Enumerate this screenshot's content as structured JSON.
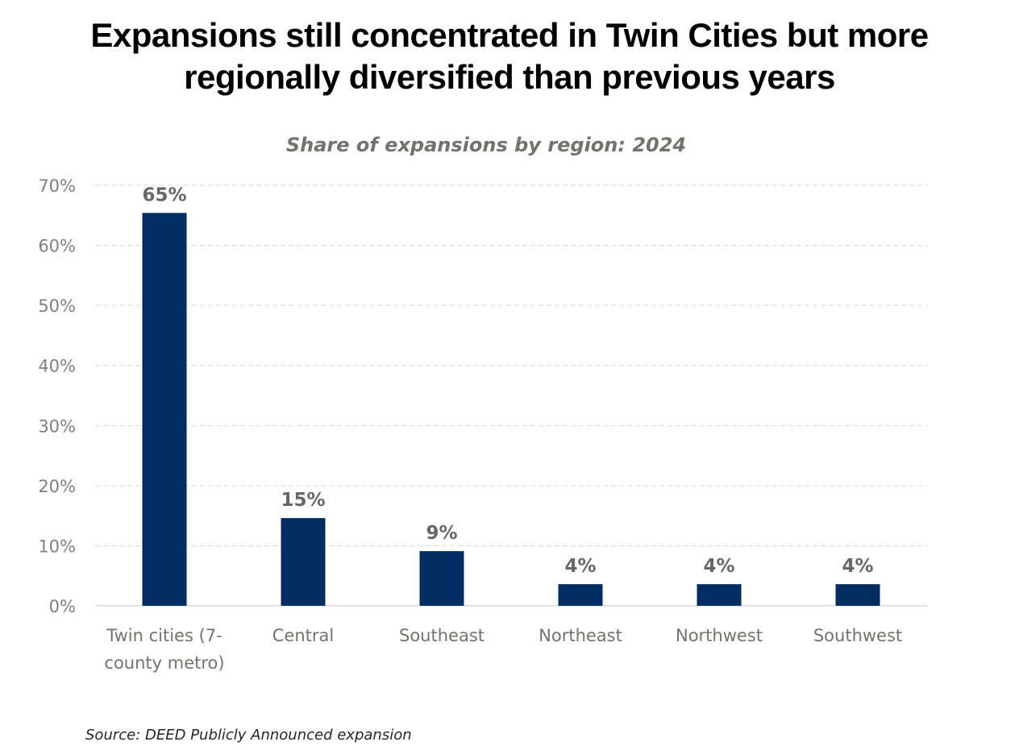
{
  "title_line1": "Expansions still concentrated in Twin Cities but more",
  "title_line2": "regionally diversified than previous years",
  "source": "Source: DEED Publicly Announced expansion",
  "colors": {
    "bar": "#002D62",
    "grid": "#D9D9D9",
    "axis": "#D9D9D9"
  },
  "chart_data": {
    "type": "bar",
    "title": "Share of expansions by region: 2024",
    "xlabel": "",
    "ylabel": "",
    "categories": [
      [
        "Twin cities (7-",
        "county metro)"
      ],
      [
        "Central"
      ],
      [
        "Southeast"
      ],
      [
        "Northeast"
      ],
      [
        "Northwest"
      ],
      [
        "Southwest"
      ]
    ],
    "values": [
      65.4,
      14.6,
      9.1,
      3.6,
      3.6,
      3.6
    ],
    "data_labels": [
      "65%",
      "15%",
      "9%",
      "4%",
      "4%",
      "4%"
    ],
    "ylim": [
      0,
      70
    ],
    "yticks": [
      0,
      10,
      20,
      30,
      40,
      50,
      60,
      70
    ],
    "ytick_labels": [
      "0%",
      "10%",
      "20%",
      "30%",
      "40%",
      "50%",
      "60%",
      "70%"
    ],
    "grid": true,
    "grid_style": "dashed",
    "legend": "none"
  }
}
